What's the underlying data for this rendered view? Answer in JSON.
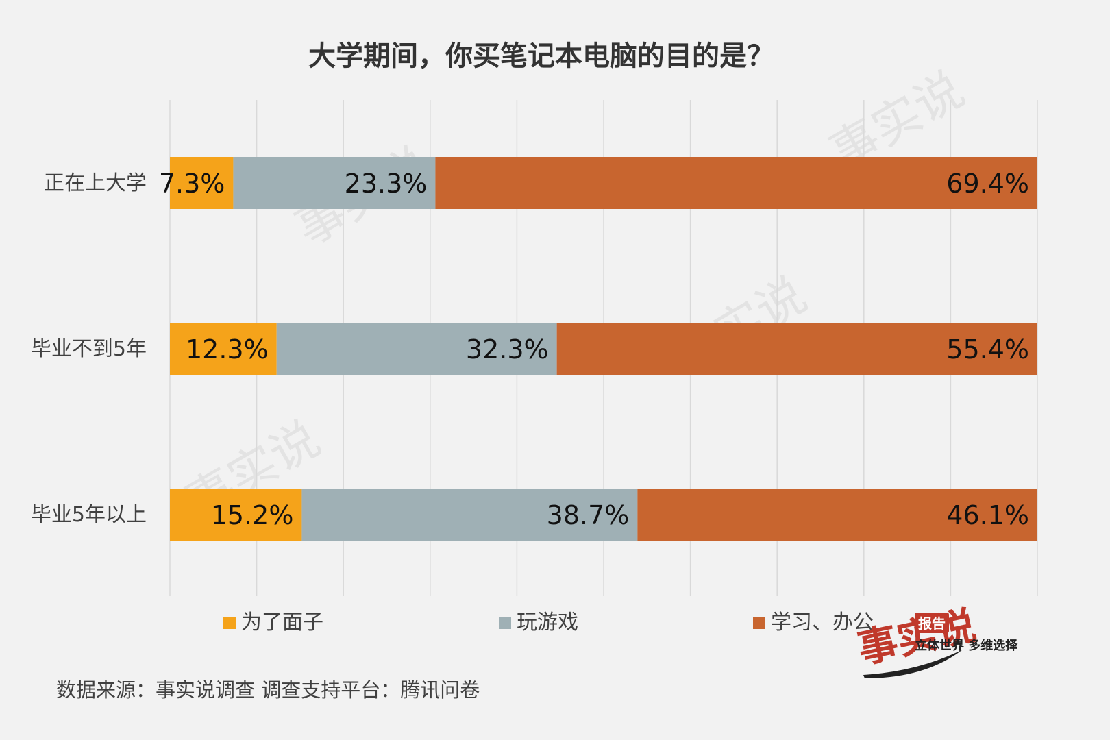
{
  "chart_data": {
    "type": "bar",
    "orientation": "horizontal",
    "stacked": true,
    "title": "大学期间，你买笔记本电脑的目的是？",
    "categories": [
      "正在上大学",
      "毕业不到5年",
      "毕业5年以上"
    ],
    "series": [
      {
        "name": "为了面子",
        "values": [
          7.3,
          12.3,
          15.2
        ],
        "labels": [
          "7.3%",
          "12.3%",
          "15.2%"
        ],
        "color": "#f5a31a"
      },
      {
        "name": "玩游戏",
        "values": [
          23.3,
          32.3,
          38.7
        ],
        "labels": [
          "23.3%",
          "32.3%",
          "38.7%"
        ],
        "color": "#9fb0b5"
      },
      {
        "name": "学习、办公",
        "values": [
          69.4,
          55.4,
          46.1
        ],
        "labels": [
          "69.4%",
          "55.4%",
          "46.1%"
        ],
        "color": "#c8652f"
      }
    ],
    "xlim": [
      0,
      100
    ],
    "grid": true,
    "legend_position": "bottom"
  },
  "source_note": "数据来源：事实说调查    调查支持平台：腾讯问卷",
  "logo": {
    "text": "事实说",
    "badge": "报告",
    "slogan": "立体世界 多维选择"
  },
  "colors": {
    "background": "#f2f2f2",
    "grid": "#d9d9d9",
    "logo_red": "#c0392b"
  }
}
